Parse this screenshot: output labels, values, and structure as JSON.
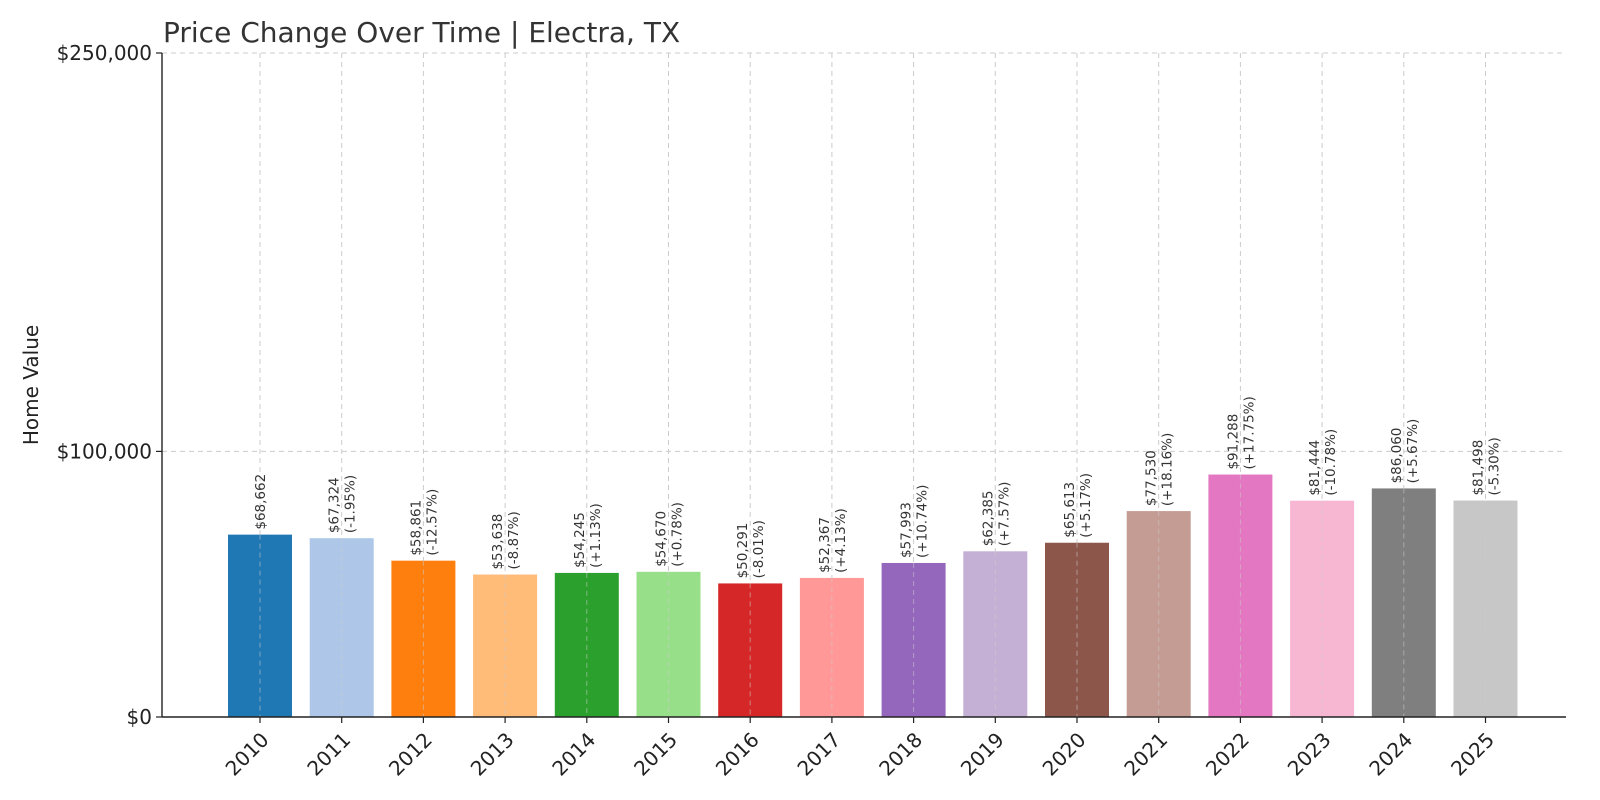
{
  "chart_data": {
    "type": "bar",
    "title": "Price Change Over Time | Electra, TX",
    "xlabel": "",
    "ylabel": "Home Value",
    "ylim": [
      0,
      250000
    ],
    "yticks": [
      {
        "value": 0,
        "label": "$0"
      },
      {
        "value": 100000,
        "label": "$100,000"
      },
      {
        "value": 250000,
        "label": "$250,000"
      }
    ],
    "grid": true,
    "categories": [
      "2010",
      "2011",
      "2012",
      "2013",
      "2014",
      "2015",
      "2016",
      "2017",
      "2018",
      "2019",
      "2020",
      "2021",
      "2022",
      "2023",
      "2024",
      "2025"
    ],
    "values": [
      68662,
      67324,
      58861,
      53638,
      54245,
      54670,
      50291,
      52367,
      57993,
      62385,
      65613,
      77530,
      91288,
      81444,
      86060,
      81498
    ],
    "value_labels": [
      "$68,662",
      "$67,324",
      "$58,861",
      "$53,638",
      "$54,245",
      "$54,670",
      "$50,291",
      "$52,367",
      "$57,993",
      "$62,385",
      "$65,613",
      "$77,530",
      "$91,288",
      "$81,444",
      "$86,060",
      "$81,498"
    ],
    "change_labels": [
      "",
      "(-1.95%)",
      "(-12.57%)",
      "(-8.87%)",
      "(+1.13%)",
      "(+0.78%)",
      "(-8.01%)",
      "(+4.13%)",
      "(+10.74%)",
      "(+7.57%)",
      "(+5.17%)",
      "(+18.16%)",
      "(+17.75%)",
      "(-10.78%)",
      "(+5.67%)",
      "(-5.30%)"
    ],
    "colors": [
      "#1f77b4",
      "#aec7e8",
      "#ff7f0e",
      "#ffbb78",
      "#2ca02c",
      "#98df8a",
      "#d62728",
      "#ff9896",
      "#9467bd",
      "#c5b0d5",
      "#8c564b",
      "#c49c94",
      "#e377c2",
      "#f7b6d2",
      "#7f7f7f",
      "#c7c7c7"
    ]
  }
}
